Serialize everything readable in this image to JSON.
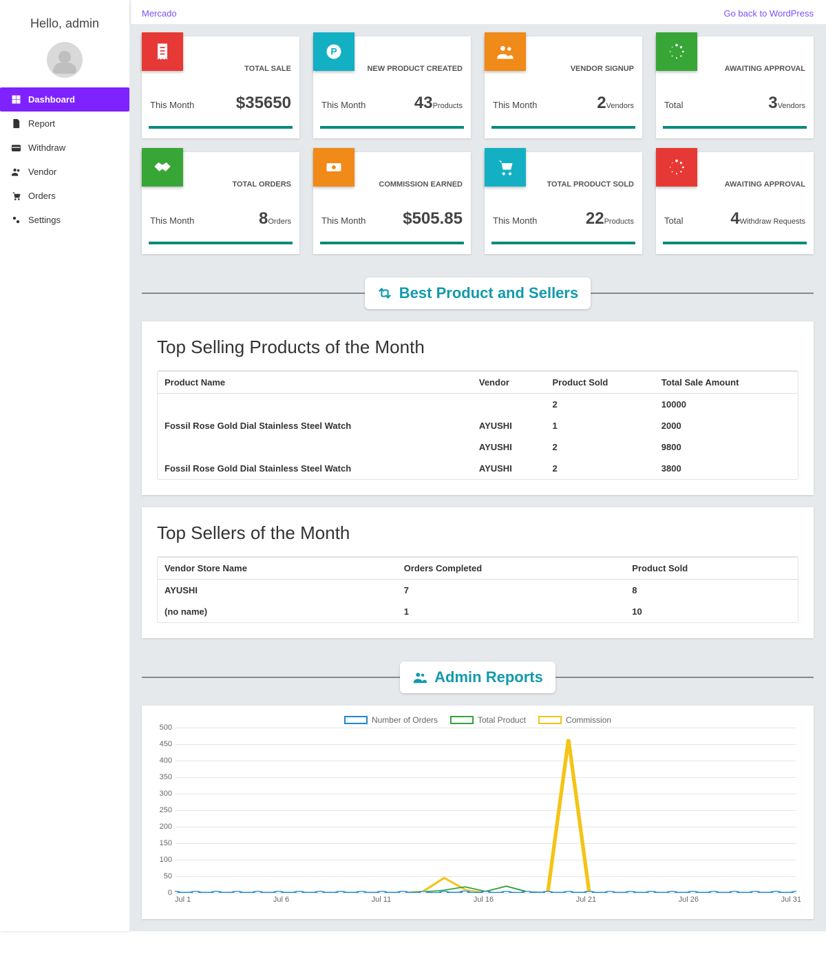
{
  "brand": "Mercado",
  "header_link": "Go back to WordPress",
  "sidebar": {
    "greeting": "Hello, admin",
    "items": [
      {
        "label": "Dashboard",
        "active": true
      },
      {
        "label": "Report",
        "active": false
      },
      {
        "label": "Withdraw",
        "active": false
      },
      {
        "label": "Vendor",
        "active": false
      },
      {
        "label": "Orders",
        "active": false
      },
      {
        "label": "Settings",
        "active": false
      }
    ]
  },
  "cards": [
    {
      "icon": "receipt",
      "icon_color": "#e63935",
      "label": "TOTAL SALE",
      "period": "This Month",
      "value": "$35650",
      "unit": ""
    },
    {
      "icon": "product",
      "icon_color": "#13b0c4",
      "label": "NEW PRODUCT CREATED",
      "period": "This Month",
      "value": "43",
      "unit": "Products"
    },
    {
      "icon": "users",
      "icon_color": "#f08a18",
      "label": "VENDOR SIGNUP",
      "period": "This Month",
      "value": "2",
      "unit": "Vendors"
    },
    {
      "icon": "spinner",
      "icon_color": "#37a636",
      "label": "AWAITING APPROVAL",
      "period": "Total",
      "value": "3",
      "unit": "Vendors"
    },
    {
      "icon": "handshake",
      "icon_color": "#37a636",
      "label": "TOTAL ORDERS",
      "period": "This Month",
      "value": "8",
      "unit": "Orders"
    },
    {
      "icon": "money",
      "icon_color": "#f08a18",
      "label": "COMMISSION EARNED",
      "period": "This Month",
      "value": "$505.85",
      "unit": ""
    },
    {
      "icon": "cart",
      "icon_color": "#13b0c4",
      "label": "TOTAL PRODUCT SOLD",
      "period": "This Month",
      "value": "22",
      "unit": "Products"
    },
    {
      "icon": "spinner",
      "icon_color": "#e63935",
      "label": "AWAITING APPROVAL",
      "period": "Total",
      "value": "4",
      "unit": "Withdraw Requests"
    }
  ],
  "section_products": {
    "pill_title": "Best Product and Sellers",
    "title": "Top Selling Products of the Month",
    "columns": [
      "Product Name",
      "Vendor",
      "Product Sold",
      "Total Sale Amount"
    ],
    "rows": [
      [
        "",
        "",
        "2",
        "10000"
      ],
      [
        "Fossil Rose Gold Dial Stainless Steel Watch",
        "AYUSHI",
        "1",
        "2000"
      ],
      [
        "",
        "AYUSHI",
        "2",
        "9800"
      ],
      [
        "Fossil Rose Gold Dial Stainless Steel Watch",
        "AYUSHI",
        "2",
        "3800"
      ]
    ]
  },
  "section_sellers": {
    "title": "Top Sellers of the Month",
    "columns": [
      "Vendor Store Name",
      "Orders Completed",
      "Product Sold"
    ],
    "rows": [
      [
        "AYUSHI",
        "7",
        "8"
      ],
      [
        "(no name)",
        "1",
        "10"
      ]
    ]
  },
  "reports": {
    "pill_title": "Admin Reports",
    "legend": [
      {
        "label": "Number of Orders",
        "color": "#1e88d2"
      },
      {
        "label": "Total Product",
        "color": "#33a439"
      },
      {
        "label": "Commission",
        "color": "#f4c416"
      }
    ],
    "y_max": 500,
    "y_step": 50,
    "x_points": 31,
    "x_tick_labels": [
      "Jul 1",
      "Jul 6",
      "Jul 11",
      "Jul 16",
      "Jul 21",
      "Jul 26",
      "Jul 31"
    ],
    "series": {
      "orders": [
        1,
        1,
        1,
        1,
        1,
        1,
        1,
        1,
        1,
        1,
        1,
        1,
        1,
        1,
        2,
        1,
        1,
        1,
        1,
        1,
        1,
        1,
        1,
        1,
        1,
        1,
        1,
        1,
        1,
        1,
        1
      ],
      "products": [
        1,
        1,
        1,
        1,
        1,
        1,
        1,
        1,
        1,
        1,
        1,
        1,
        3,
        8,
        18,
        4,
        20,
        3,
        1,
        1,
        1,
        1,
        1,
        1,
        1,
        1,
        1,
        1,
        1,
        1,
        1
      ],
      "commission": [
        0,
        0,
        0,
        0,
        0,
        0,
        0,
        0,
        0,
        0,
        0,
        0,
        5,
        45,
        10,
        0,
        2,
        0,
        0,
        465,
        0,
        0,
        0,
        0,
        0,
        0,
        0,
        0,
        0,
        0,
        0
      ]
    },
    "colors": {
      "grid": "#e5e5e5",
      "axis_text": "#666666",
      "background": "#ffffff"
    }
  }
}
